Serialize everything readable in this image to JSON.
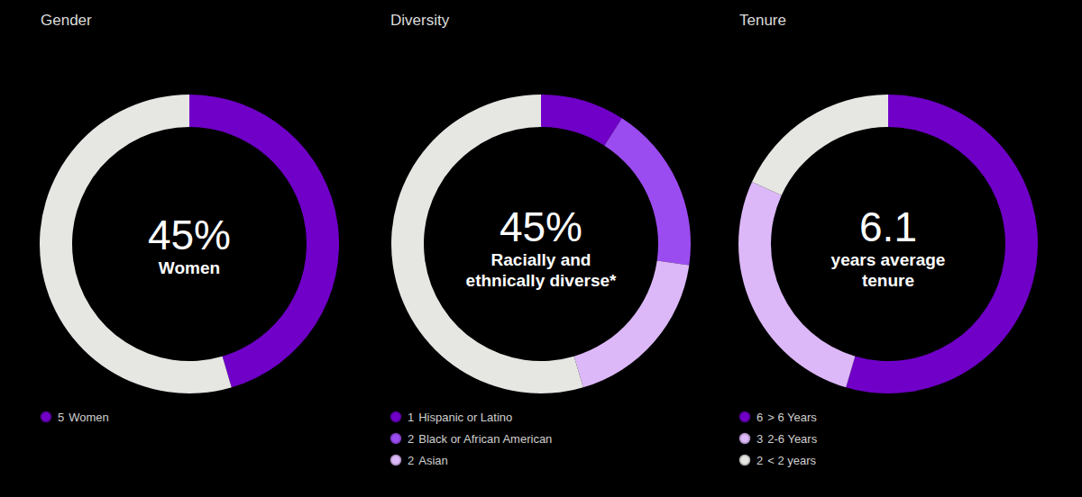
{
  "chart_data": [
    {
      "type": "pie",
      "title": "Gender",
      "categories": [
        "Women",
        null
      ],
      "values": [
        5,
        6
      ],
      "colors": [
        "#7000c8",
        "#e6e6e3"
      ],
      "annotations": [
        "45%",
        "Women"
      ],
      "legend": "bottom-left",
      "data_labels": false
    },
    {
      "type": "pie",
      "title": "Diversity",
      "categories": [
        "Hispanic or Latino",
        "Black or African American",
        "Asian",
        null
      ],
      "values": [
        1,
        2,
        2,
        6
      ],
      "colors": [
        "#7000c8",
        "#9b4cf0",
        "#dcb8f8",
        "#e6e6e3"
      ],
      "annotations": [
        "45%",
        "Racially and",
        "ethnically diverse*"
      ],
      "legend": "bottom-left",
      "data_labels": false
    },
    {
      "type": "pie",
      "title": "Tenure",
      "categories": [
        "> 6 Years",
        "2-6 Years",
        "< 2 years"
      ],
      "values": [
        6,
        3,
        2
      ],
      "colors": [
        "#7000c8",
        "#dcb8f8",
        "#e6e6e3"
      ],
      "annotations": [
        "6.1",
        "years average",
        "tenure"
      ],
      "legend": "bottom-left",
      "data_labels": false
    }
  ]
}
